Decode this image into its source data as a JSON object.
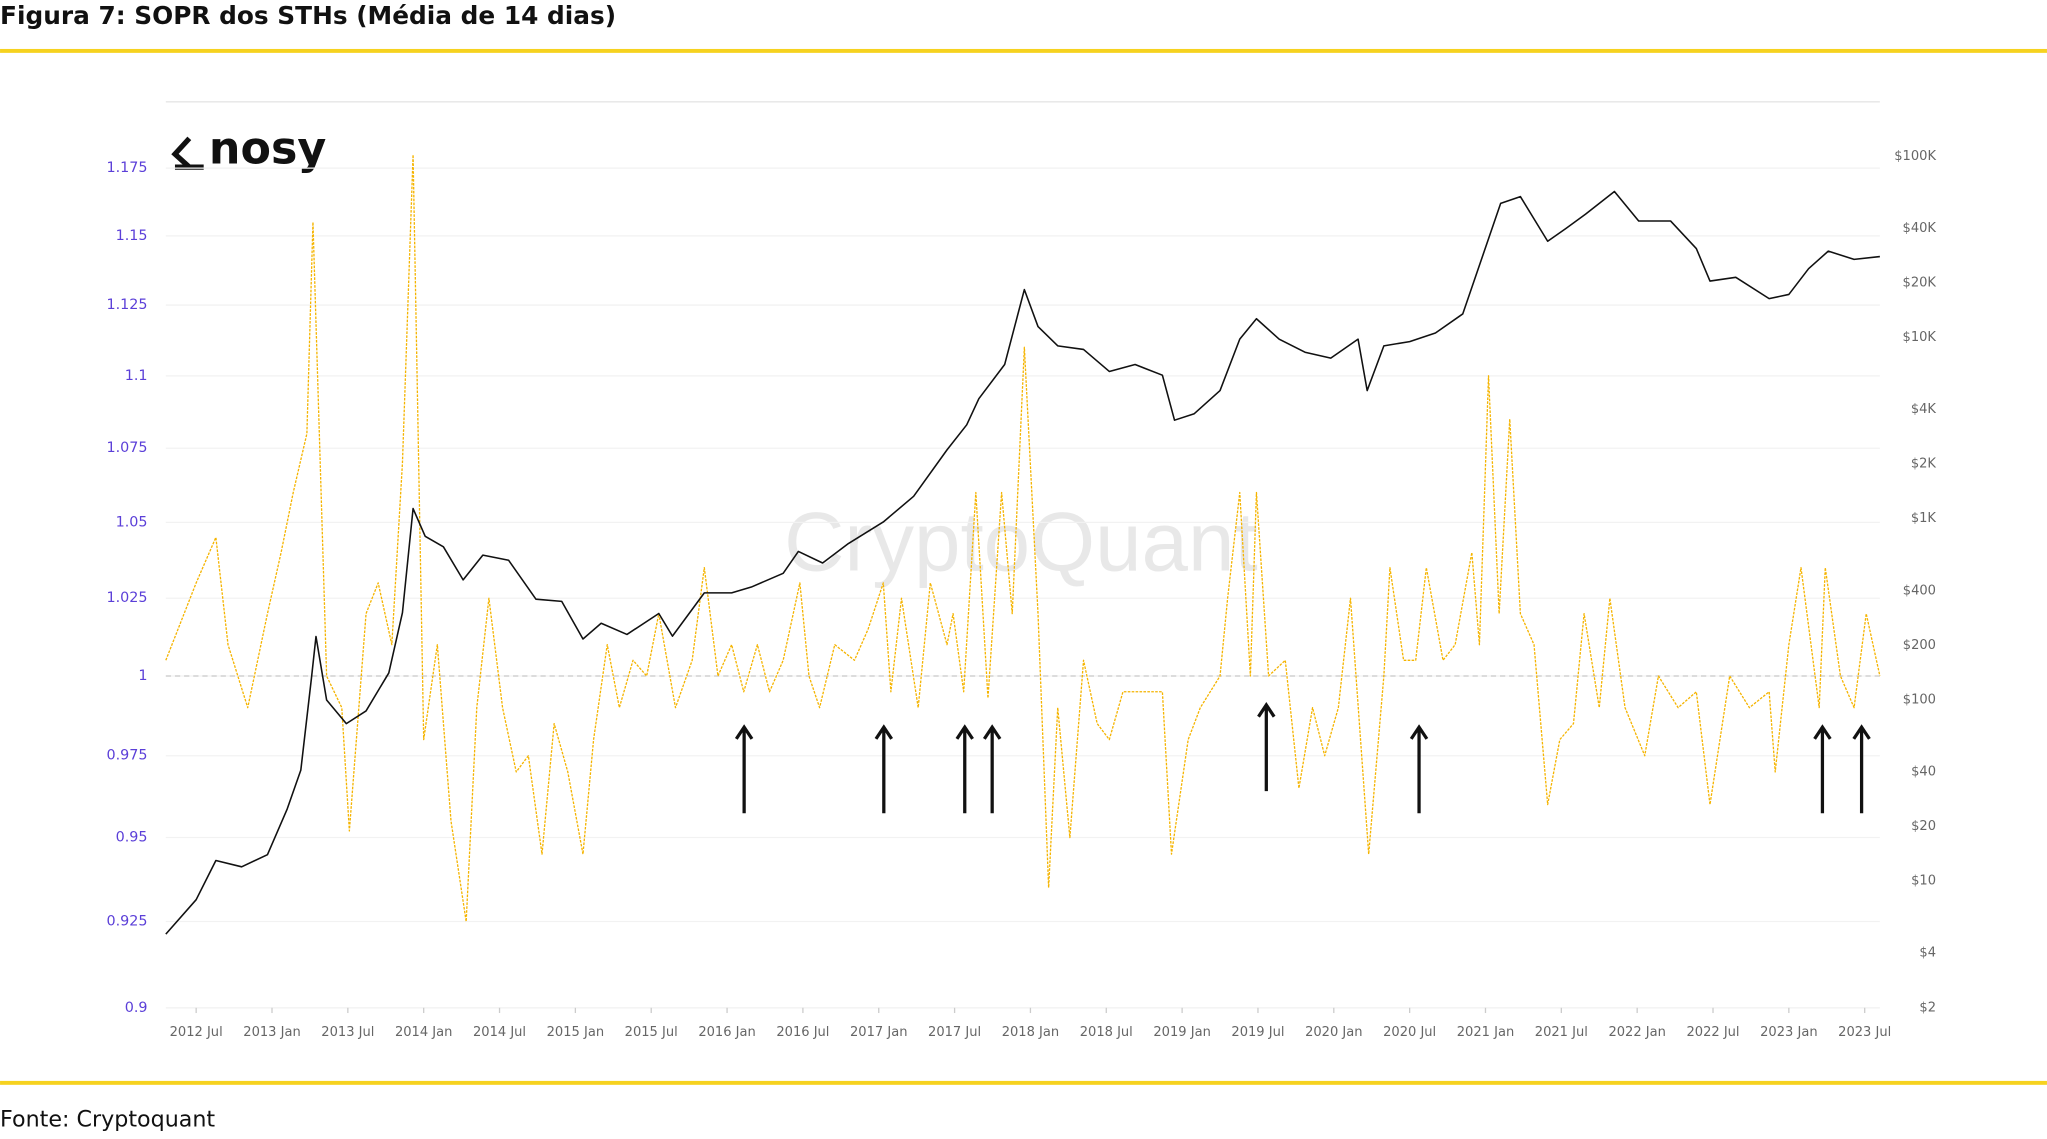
{
  "header": {
    "title": "Figura 7: SOPR dos STHs (Média de 14 dias)"
  },
  "chart_data": {
    "type": "line",
    "logo": "nosy",
    "watermark": "CryptoQuant",
    "xlim": [
      2012.3,
      2023.6
    ],
    "xticks": [
      {
        "value": 2012.5,
        "label": "2012 Jul"
      },
      {
        "value": 2013.0,
        "label": "2013 Jan"
      },
      {
        "value": 2013.5,
        "label": "2013 Jul"
      },
      {
        "value": 2014.0,
        "label": "2014 Jan"
      },
      {
        "value": 2014.5,
        "label": "2014 Jul"
      },
      {
        "value": 2015.0,
        "label": "2015 Jan"
      },
      {
        "value": 2015.5,
        "label": "2015 Jul"
      },
      {
        "value": 2016.0,
        "label": "2016 Jan"
      },
      {
        "value": 2016.5,
        "label": "2016 Jul"
      },
      {
        "value": 2017.0,
        "label": "2017 Jan"
      },
      {
        "value": 2017.5,
        "label": "2017 Jul"
      },
      {
        "value": 2018.0,
        "label": "2018 Jan"
      },
      {
        "value": 2018.5,
        "label": "2018 Jul"
      },
      {
        "value": 2019.0,
        "label": "2019 Jan"
      },
      {
        "value": 2019.5,
        "label": "2019 Jul"
      },
      {
        "value": 2020.0,
        "label": "2020 Jan"
      },
      {
        "value": 2020.5,
        "label": "2020 Jul"
      },
      {
        "value": 2021.0,
        "label": "2021 Jan"
      },
      {
        "value": 2021.5,
        "label": "2021 Jul"
      },
      {
        "value": 2022.0,
        "label": "2022 Jan"
      },
      {
        "value": 2022.5,
        "label": "2022 Jul"
      },
      {
        "value": 2023.0,
        "label": "2023 Jan"
      },
      {
        "value": 2023.5,
        "label": "2023 Jul"
      }
    ],
    "ylim": [
      0.9,
      1.2
    ],
    "y_log": true,
    "yticks": [
      0.9,
      0.925,
      0.95,
      0.975,
      1,
      1.025,
      1.05,
      1.075,
      1.1,
      1.125,
      1.15,
      1.175
    ],
    "y2lim": [
      2,
      200000
    ],
    "y2_log": true,
    "y2ticks": [
      {
        "value": 2,
        "label": "$2"
      },
      {
        "value": 4,
        "label": "$4"
      },
      {
        "value": 10,
        "label": "$10"
      },
      {
        "value": 20,
        "label": "$20"
      },
      {
        "value": 40,
        "label": "$40"
      },
      {
        "value": 100,
        "label": "$100"
      },
      {
        "value": 200,
        "label": "$200"
      },
      {
        "value": 400,
        "label": "$400"
      },
      {
        "value": 1000,
        "label": "$1K"
      },
      {
        "value": 2000,
        "label": "$2K"
      },
      {
        "value": 4000,
        "label": "$4K"
      },
      {
        "value": 10000,
        "label": "$10K"
      },
      {
        "value": 20000,
        "label": "$20K"
      },
      {
        "value": 40000,
        "label": "$40K"
      },
      {
        "value": 100000,
        "label": "$100K"
      }
    ],
    "grid": true,
    "hline": 1,
    "series": [
      {
        "color": "#f5b400",
        "dashed": true,
        "x": [
          2012.3,
          2012.5,
          2012.63,
          2012.71,
          2012.84,
          2012.97,
          2013.06,
          2013.14,
          2013.23,
          2013.27,
          2013.36,
          2013.46,
          2013.51,
          2013.62,
          2013.7,
          2013.79,
          2013.86,
          2013.93,
          2014.0,
          2014.09,
          2014.18,
          2014.28,
          2014.35,
          2014.43,
          2014.52,
          2014.61,
          2014.69,
          2014.78,
          2014.86,
          2014.95,
          2015.05,
          2015.12,
          2015.21,
          2015.29,
          2015.38,
          2015.47,
          2015.55,
          2015.66,
          2015.77,
          2015.85,
          2015.94,
          2016.03,
          2016.11,
          2016.2,
          2016.28,
          2016.37,
          2016.48,
          2016.54,
          2016.61,
          2016.71,
          2016.84,
          2016.93,
          2017.03,
          2017.08,
          2017.15,
          2017.26,
          2017.34,
          2017.45,
          2017.49,
          2017.56,
          2017.64,
          2017.72,
          2017.81,
          2017.88,
          2017.96,
          2018.05,
          2018.12,
          2018.18,
          2018.26,
          2018.35,
          2018.44,
          2018.52,
          2018.61,
          2018.78,
          2018.87,
          2018.93,
          2019.04,
          2019.12,
          2019.25,
          2019.3,
          2019.38,
          2019.45,
          2019.49,
          2019.57,
          2019.68,
          2019.77,
          2019.86,
          2019.94,
          2020.03,
          2020.11,
          2020.23,
          2020.33,
          2020.37,
          2020.46,
          2020.54,
          2020.61,
          2020.72,
          2020.8,
          2020.91,
          2020.96,
          2021.02,
          2021.09,
          2021.16,
          2021.23,
          2021.32,
          2021.41,
          2021.49,
          2021.58,
          2021.65,
          2021.75,
          2021.82,
          2021.92,
          2022.05,
          2022.14,
          2022.27,
          2022.39,
          2022.48,
          2022.61,
          2022.74,
          2022.87,
          2022.91,
          2023.0,
          2023.08,
          2023.2,
          2023.24,
          2023.34,
          2023.43,
          2023.51,
          2023.6
        ],
        "values": [
          1.005,
          1.03,
          1.045,
          1.01,
          0.99,
          1.02,
          1.04,
          1.06,
          1.08,
          1.155,
          1.0,
          0.99,
          0.952,
          1.02,
          1.03,
          1.01,
          1.07,
          1.18,
          0.98,
          1.01,
          0.955,
          0.925,
          0.99,
          1.025,
          0.99,
          0.97,
          0.975,
          0.945,
          0.985,
          0.97,
          0.945,
          0.98,
          1.01,
          0.99,
          1.005,
          1.0,
          1.02,
          0.99,
          1.005,
          1.035,
          1.0,
          1.01,
          0.995,
          1.01,
          0.995,
          1.005,
          1.03,
          1.0,
          0.99,
          1.01,
          1.005,
          1.015,
          1.03,
          0.995,
          1.025,
          0.99,
          1.03,
          1.01,
          1.02,
          0.995,
          1.06,
          0.993,
          1.06,
          1.02,
          1.11,
          1.02,
          0.935,
          0.99,
          0.95,
          1.005,
          0.985,
          0.98,
          0.995,
          0.995,
          0.995,
          0.945,
          0.98,
          0.99,
          1.0,
          1.025,
          1.06,
          1.0,
          1.06,
          1.0,
          1.005,
          0.965,
          0.99,
          0.975,
          0.99,
          1.025,
          0.945,
          1.0,
          1.035,
          1.005,
          1.005,
          1.035,
          1.005,
          1.01,
          1.04,
          1.01,
          1.1,
          1.02,
          1.085,
          1.02,
          1.01,
          0.96,
          0.98,
          0.985,
          1.02,
          0.99,
          1.025,
          0.99,
          0.975,
          1.0,
          0.99,
          0.995,
          0.96,
          1.0,
          0.99,
          0.995,
          0.97,
          1.01,
          1.035,
          0.99,
          1.035,
          1.0,
          0.99,
          1.02,
          1.0
        ]
      },
      {
        "color": "#111111",
        "axis": "y2",
        "x": [
          2012.3,
          2012.5,
          2012.63,
          2012.8,
          2012.97,
          2013.1,
          2013.19,
          2013.26,
          2013.29,
          2013.36,
          2013.49,
          2013.62,
          2013.77,
          2013.86,
          2013.93,
          2014.01,
          2014.13,
          2014.26,
          2014.39,
          2014.56,
          2014.74,
          2014.91,
          2015.05,
          2015.17,
          2015.34,
          2015.55,
          2015.64,
          2015.85,
          2016.03,
          2016.16,
          2016.37,
          2016.47,
          2016.63,
          2016.8,
          2017.03,
          2017.23,
          2017.45,
          2017.58,
          2017.66,
          2017.83,
          2017.96,
          2018.05,
          2018.18,
          2018.35,
          2018.52,
          2018.69,
          2018.87,
          2018.95,
          2019.08,
          2019.25,
          2019.38,
          2019.49,
          2019.64,
          2019.81,
          2019.98,
          2020.16,
          2020.22,
          2020.33,
          2020.5,
          2020.67,
          2020.85,
          2020.97,
          2021.1,
          2021.23,
          2021.41,
          2021.53,
          2021.66,
          2021.85,
          2022.01,
          2022.22,
          2022.39,
          2022.48,
          2022.65,
          2022.87,
          2023.0,
          2023.13,
          2023.26,
          2023.43,
          2023.6
        ],
        "values": [
          5.1,
          7.9,
          13,
          12,
          14,
          25,
          41,
          132,
          224,
          100,
          74,
          87,
          141,
          303,
          1138,
          800,
          700,
          460,
          630,
          590,
          360,
          350,
          217,
          265,
          230,
          300,
          225,
          390,
          390,
          420,
          500,
          660,
          570,
          730,
          960,
          1330,
          2400,
          3300,
          4600,
          7100,
          18400,
          11500,
          9000,
          8600,
          6500,
          7100,
          6200,
          3500,
          3800,
          5100,
          9800,
          12700,
          9800,
          8300,
          7700,
          9800,
          5100,
          9000,
          9500,
          10600,
          13500,
          26500,
          55000,
          60000,
          34000,
          40000,
          48000,
          64000,
          44000,
          44000,
          31000,
          20500,
          21500,
          16400,
          17300,
          24000,
          30000,
          27000,
          28000
        ]
      }
    ]
  },
  "footer": {
    "source": "Fonte: Cryptoquant"
  }
}
